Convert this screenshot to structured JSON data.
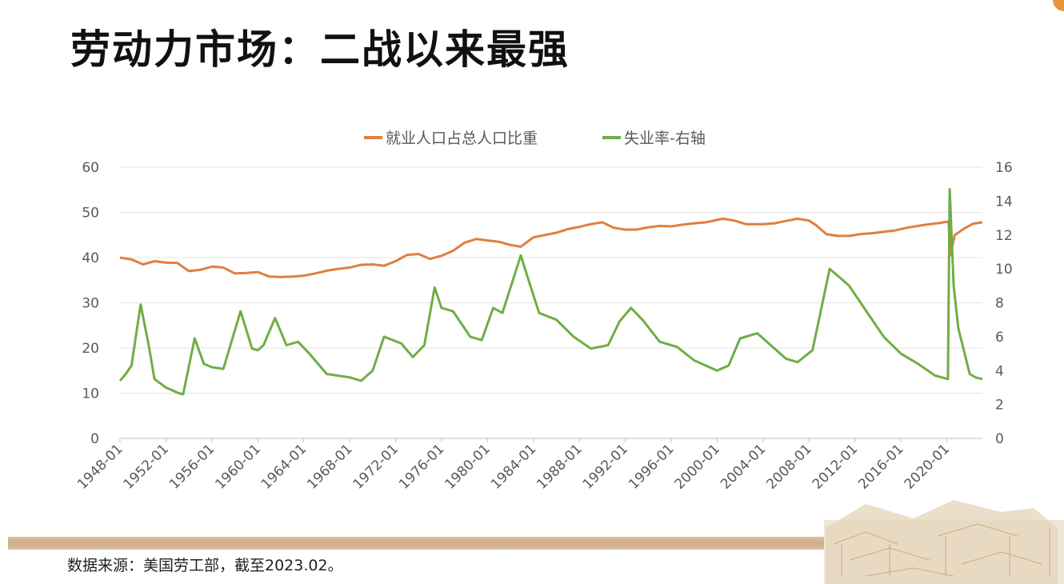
{
  "title": "劳动力市场：二战以来最强",
  "source": "数据来源：美国劳工部，截至2023.02。",
  "chart_data": {
    "type": "line",
    "title": "",
    "legend_position": "top-center",
    "grid": true,
    "left_axis": {
      "ylim": [
        0,
        60
      ],
      "ticks": [
        "0",
        "10",
        "20",
        "30",
        "40",
        "50",
        "60"
      ]
    },
    "right_axis": {
      "ylim": [
        0,
        16
      ],
      "ticks": [
        "0",
        "2",
        "4",
        "6",
        "8",
        "10",
        "12",
        "14",
        "16"
      ]
    },
    "xlim": [
      1948.0,
      2023.1
    ],
    "x_ticks": [
      "1948-01",
      "1952-01",
      "1956-01",
      "1960-01",
      "1964-01",
      "1968-01",
      "1972-01",
      "1976-01",
      "1980-01",
      "1984-01",
      "1988-01",
      "1992-01",
      "1996-01",
      "2000-01",
      "2004-01",
      "2008-01",
      "2012-01",
      "2016-01",
      "2020-01"
    ],
    "series": [
      {
        "name": "就业人口占总人口比重",
        "axis": "left",
        "color": "#e07f3e",
        "x": [
          1948,
          1949,
          1950,
          1951,
          1952,
          1953,
          1954,
          1955,
          1956,
          1957,
          1958,
          1959,
          1960,
          1961,
          1962,
          1963,
          1964,
          1965,
          1966,
          1967,
          1968,
          1969,
          1970,
          1971,
          1972,
          1973,
          1974,
          1975,
          1976,
          1977,
          1978,
          1979,
          1980,
          1981,
          1982,
          1982.9,
          1984,
          1985,
          1986,
          1987,
          1988,
          1989,
          1990,
          1991,
          1992,
          1993,
          1994,
          1995,
          1996,
          1997,
          1998,
          1999,
          2000.5,
          2001.5,
          2002.5,
          2004,
          2005,
          2006,
          2007,
          2008,
          2008.7,
          2009.5,
          2010.5,
          2011.5,
          2012.5,
          2013.5,
          2014.5,
          2015.5,
          2016.5,
          2017.5,
          2018.5,
          2019.5,
          2020.15,
          2020.3,
          2020.7,
          2021.5,
          2022.3,
          2023.1
        ],
        "y": [
          40,
          39.6,
          38.5,
          39.2,
          38.9,
          38.8,
          37,
          37.3,
          38,
          37.8,
          36.5,
          36.6,
          36.8,
          35.8,
          35.7,
          35.8,
          36,
          36.5,
          37.1,
          37.5,
          37.8,
          38.4,
          38.5,
          38.2,
          39.2,
          40.6,
          40.8,
          39.7,
          40.4,
          41.5,
          43.3,
          44.1,
          43.8,
          43.5,
          42.8,
          42.4,
          44.5,
          45,
          45.5,
          46.3,
          46.8,
          47.4,
          47.8,
          46.6,
          46.2,
          46.2,
          46.7,
          47,
          46.9,
          47.3,
          47.6,
          47.8,
          48.6,
          48.2,
          47.4,
          47.4,
          47.6,
          48.1,
          48.6,
          48.2,
          47,
          45.2,
          44.8,
          44.8,
          45.2,
          45.4,
          45.7,
          46,
          46.6,
          47,
          47.4,
          47.7,
          48,
          40.5,
          45,
          46.4,
          47.5,
          47.8
        ]
      },
      {
        "name": "失业率-右轴",
        "axis": "right",
        "color": "#70ad47",
        "x": [
          1948,
          1948.5,
          1949,
          1949.8,
          1950.5,
          1951,
          1952,
          1953,
          1953.5,
          1954.5,
          1955.3,
          1956,
          1957,
          1958.5,
          1959.5,
          1960,
          1960.5,
          1961.5,
          1962.5,
          1963.5,
          1964.5,
          1966,
          1968,
          1969,
          1970,
          1971,
          1972.5,
          1973.5,
          1974.5,
          1975.4,
          1976,
          1977,
          1978.5,
          1979.5,
          1980.5,
          1981.3,
          1982.9,
          1983.5,
          1984.5,
          1986,
          1987.5,
          1989,
          1990.5,
          1991.5,
          1992.5,
          1993.5,
          1995,
          1996.5,
          1998,
          2000,
          2001,
          2002,
          2003.5,
          2004.5,
          2006,
          2007,
          2008.3,
          2009.8,
          2010.5,
          2011.5,
          2013,
          2014.5,
          2016,
          2017.5,
          2019,
          2020.1,
          2020.25,
          2020.6,
          2021,
          2022,
          2022.5,
          2023.1
        ],
        "y": [
          3.4,
          3.8,
          4.3,
          7.9,
          5.5,
          3.5,
          3.0,
          2.7,
          2.6,
          5.9,
          4.4,
          4.2,
          4.1,
          7.5,
          5.3,
          5.2,
          5.5,
          7.1,
          5.5,
          5.7,
          5.0,
          3.8,
          3.6,
          3.4,
          4.0,
          6.0,
          5.6,
          4.8,
          5.5,
          8.9,
          7.7,
          7.5,
          6.0,
          5.8,
          7.7,
          7.4,
          10.8,
          9.5,
          7.4,
          7.0,
          6.0,
          5.3,
          5.5,
          6.9,
          7.7,
          7.0,
          5.7,
          5.4,
          4.6,
          4.0,
          4.3,
          5.9,
          6.2,
          5.6,
          4.7,
          4.5,
          5.2,
          10.0,
          9.6,
          9.0,
          7.5,
          6.0,
          5.0,
          4.4,
          3.7,
          3.5,
          14.7,
          9.0,
          6.5,
          3.8,
          3.6,
          3.5
        ]
      }
    ]
  }
}
